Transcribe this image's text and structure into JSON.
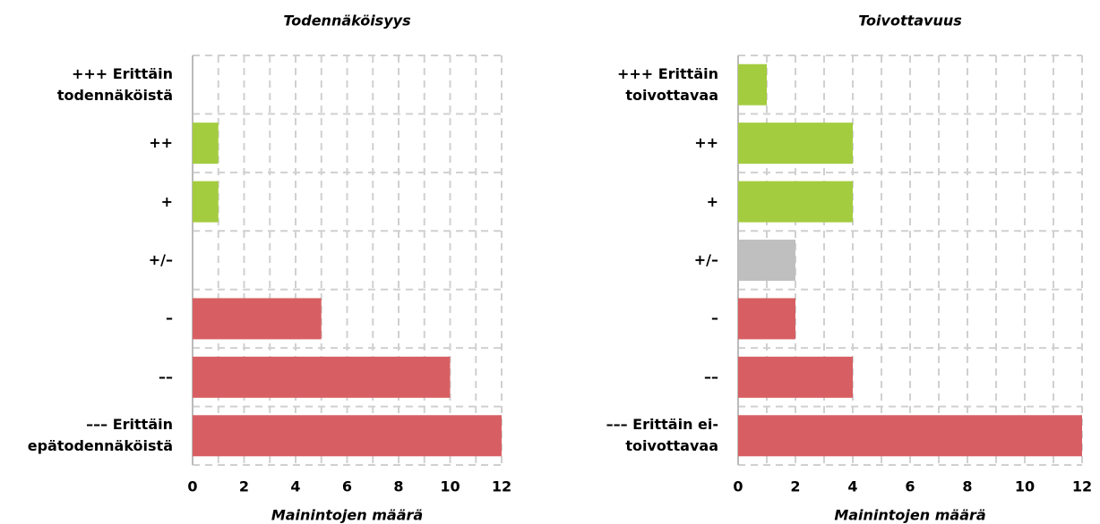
{
  "chart_data": [
    {
      "type": "barh",
      "title": "Todennäköisyys",
      "xlabel": "Mainintojen määrä",
      "categories": [
        "+++ Erittäin todennäköistä",
        "++",
        "+",
        "+/–",
        "–",
        "––",
        "––– Erittäin epätodennäköistä"
      ],
      "values": [
        0,
        1,
        1,
        0,
        5,
        10,
        12
      ],
      "colors": [
        "#a4cc3f",
        "#a4cc3f",
        "#a4cc3f",
        "#bfbfbf",
        "#d75f63",
        "#d75f63",
        "#d75f63"
      ],
      "xlim": [
        0,
        12
      ],
      "xticks": [
        0,
        2,
        4,
        6,
        8,
        10,
        12
      ],
      "minor_xticks": [
        1,
        3,
        5,
        7,
        9,
        11
      ],
      "grid": true
    },
    {
      "type": "barh",
      "title": "Toivottavuus",
      "xlabel": "Mainintojen määrä",
      "categories": [
        "+++ Erittäin toivottavaa",
        "++",
        "+",
        "+/–",
        "–",
        "––",
        "––– Erittäin ei-toivottavaa"
      ],
      "values": [
        1,
        4,
        4,
        2,
        2,
        4,
        12
      ],
      "colors": [
        "#a4cc3f",
        "#a4cc3f",
        "#a4cc3f",
        "#bfbfbf",
        "#d75f63",
        "#d75f63",
        "#d75f63"
      ],
      "xlim": [
        0,
        12
      ],
      "xticks": [
        0,
        2,
        4,
        6,
        8,
        10,
        12
      ],
      "minor_xticks": [
        1,
        3,
        5,
        7,
        9,
        11
      ],
      "grid": true
    }
  ]
}
